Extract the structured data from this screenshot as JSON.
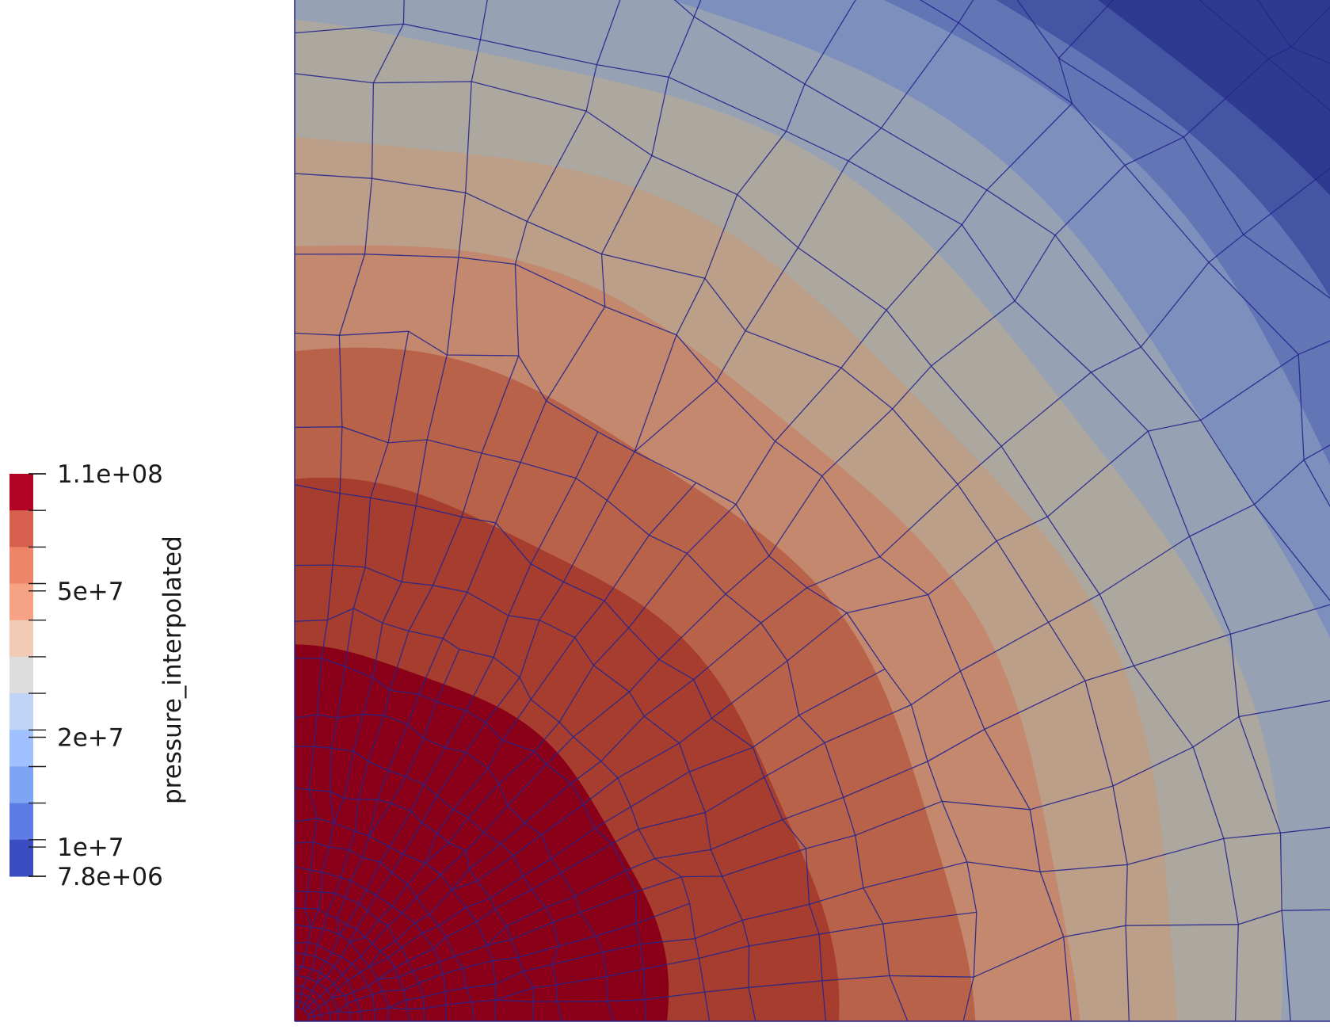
{
  "colorbar": {
    "title": "pressure_interpolated",
    "labels": [
      {
        "text": "1.1e+08",
        "value": 110000000.0
      },
      {
        "text": "5e+7",
        "value": 50000000.0
      },
      {
        "text": "2e+7",
        "value": 20000000.0
      },
      {
        "text": "1e+7",
        "value": 10000000.0
      },
      {
        "text": "7.8e+06",
        "value": 7800000.0
      }
    ],
    "bands_top_to_bottom": [
      "#b40426",
      "#d6604d",
      "#ee8468",
      "#f6a385",
      "#f2cbb7",
      "#dddddd",
      "#c0d4f5",
      "#a1c0ff",
      "#7ea4f4",
      "#5d7ce6",
      "#3b4cc0"
    ]
  },
  "plot": {
    "mesh_color": "#26268c",
    "background": "#ffffff",
    "contour_colors_inner_to_outer": [
      "#8b0019",
      "#a63d2f",
      "#b9624a",
      "#c3886e",
      "#bb9f89",
      "#aca8a0",
      "#96a1b4",
      "#7d8fbc",
      "#6276b6",
      "#4455a4",
      "#2d3a8f"
    ]
  }
}
